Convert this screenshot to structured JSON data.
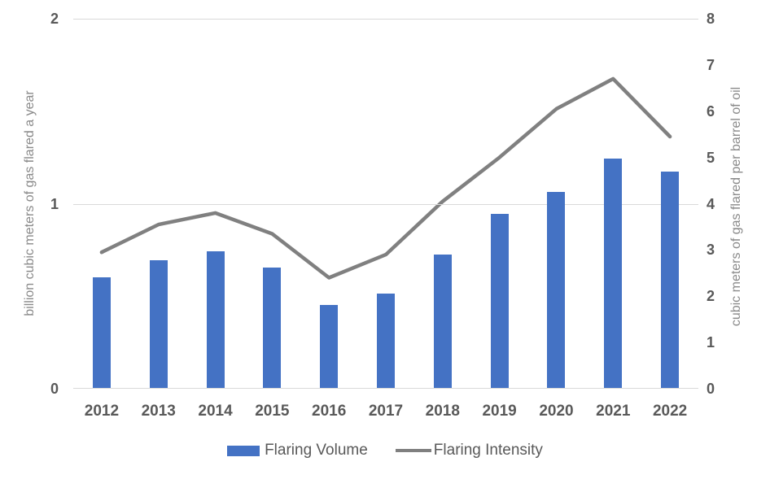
{
  "chart_data": {
    "type": "combo-bar-line",
    "title": "",
    "categories": [
      "2012",
      "2013",
      "2014",
      "2015",
      "2016",
      "2017",
      "2018",
      "2019",
      "2020",
      "2021",
      "2022"
    ],
    "series": [
      {
        "name": "Flaring Volume",
        "type": "bar",
        "axis": "left",
        "color": "#4472C4",
        "values": [
          0.6,
          0.69,
          0.74,
          0.65,
          0.45,
          0.51,
          0.72,
          0.94,
          1.06,
          1.24,
          1.17
        ]
      },
      {
        "name": "Flaring Intensity",
        "type": "line",
        "axis": "right",
        "color": "#808080",
        "values": [
          2.95,
          3.55,
          3.8,
          3.35,
          2.4,
          2.9,
          4.05,
          5.0,
          6.05,
          6.7,
          5.45
        ]
      }
    ],
    "left_axis": {
      "title": "billion cubic meters of gas flared a year",
      "min": 0,
      "max": 2,
      "ticks": [
        0,
        1,
        2
      ]
    },
    "right_axis": {
      "title": "cubic meters of gas flared per barrel of oil",
      "min": 0,
      "max": 8,
      "ticks": [
        0,
        1,
        2,
        3,
        4,
        5,
        6,
        7,
        8
      ]
    },
    "grid": {
      "on": true,
      "color": "#D9D9D9",
      "left_values": [
        1,
        2
      ]
    },
    "legend": {
      "position": "bottom",
      "items": [
        {
          "label": "Flaring Volume",
          "swatch": "bar",
          "color": "#4472C4"
        },
        {
          "label": "Flaring Intensity",
          "swatch": "line",
          "color": "#808080"
        }
      ]
    }
  }
}
